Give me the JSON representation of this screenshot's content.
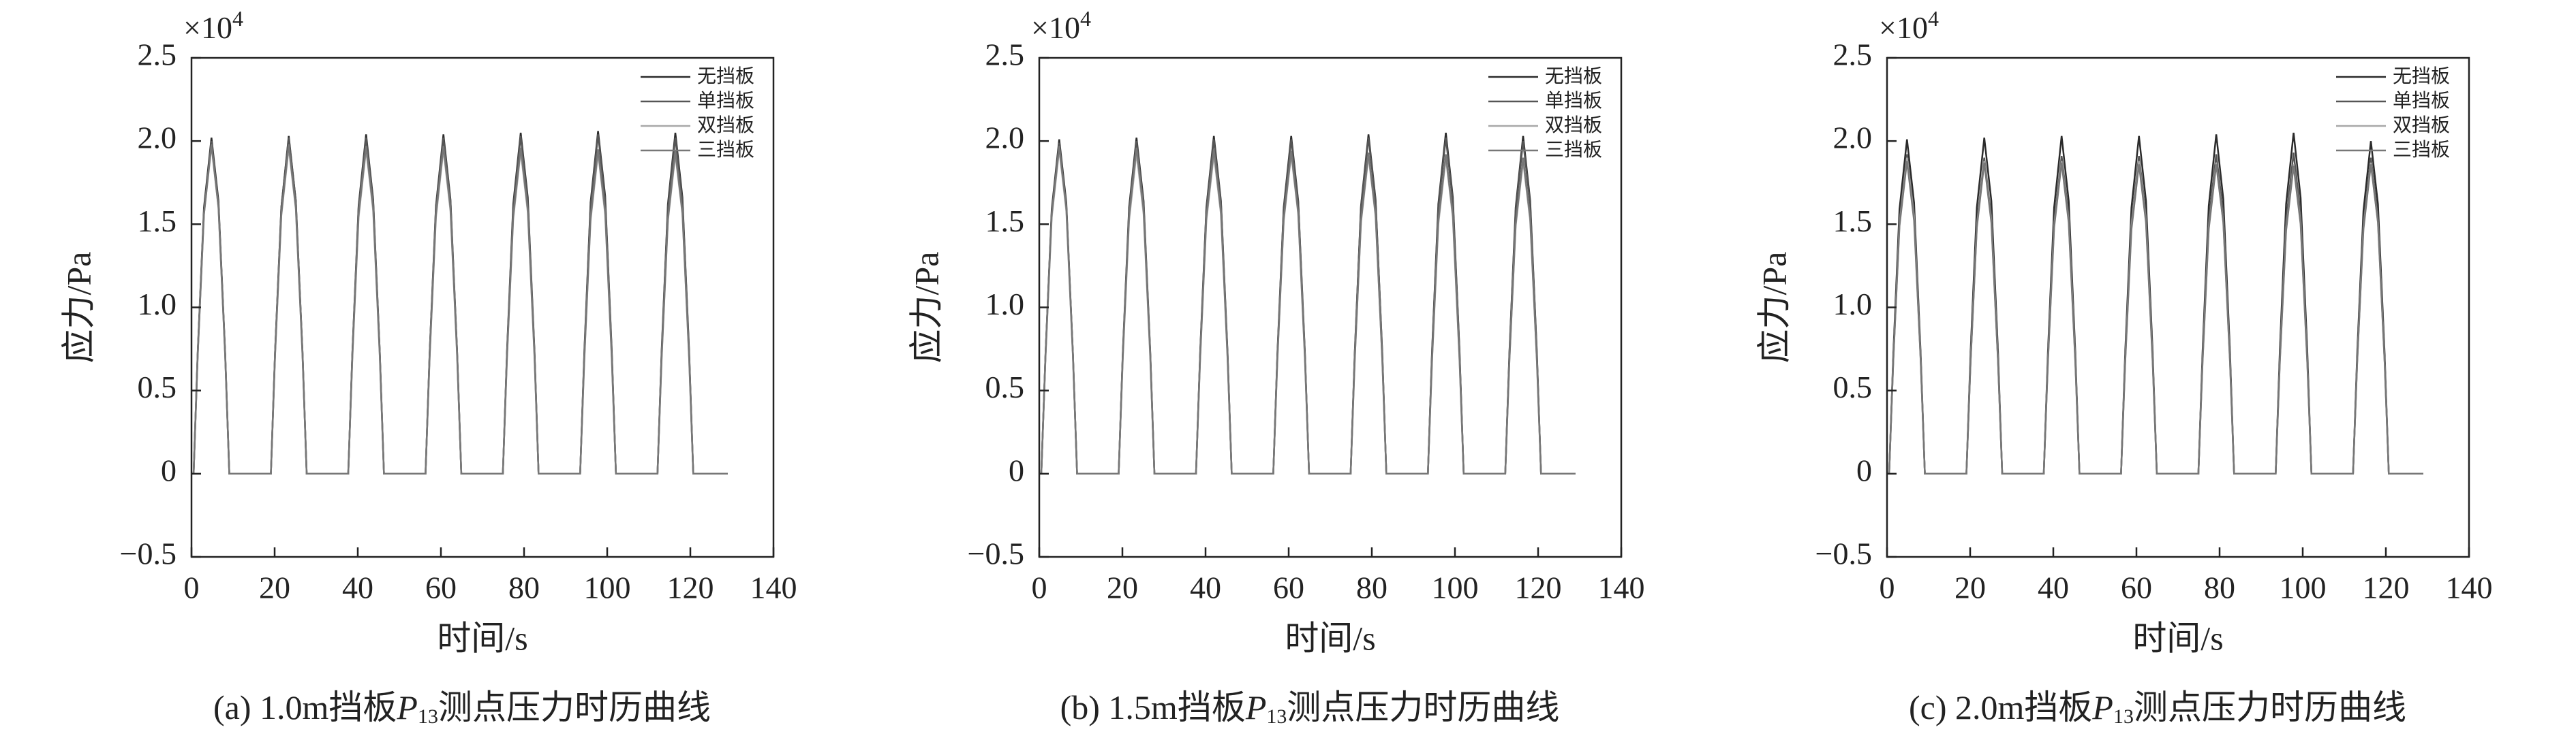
{
  "chart_data": [
    {
      "type": "line",
      "caption": [
        "(a) 1.0m挡板",
        "P",
        "13",
        "测点压力时历曲线"
      ],
      "x_label": "时间/s",
      "y_label": "应力/Pa",
      "y_multiplier": [
        "×10",
        "4"
      ],
      "xlim": [
        0,
        140
      ],
      "xticks": [
        0,
        20,
        40,
        60,
        80,
        100,
        120,
        140
      ],
      "ylim": [
        -0.5,
        2.5
      ],
      "yticks": [
        {
          "value": -0.5,
          "label": "−0.5"
        },
        0,
        0.5,
        {
          "value": 1,
          "label": "1.0"
        },
        1.5,
        {
          "value": 2,
          "label": "2.0"
        },
        2.5
      ],
      "x": [
        0.5,
        1.5,
        3,
        4.8,
        6.5,
        8.1,
        9.1,
        19.1,
        20.1,
        21.6,
        23.4,
        25.1,
        26.7,
        27.7,
        37.7,
        38.7,
        40.2,
        42,
        43.7,
        45.3,
        46.3,
        56.3,
        57.3,
        58.8,
        60.6,
        62.3,
        63.9,
        64.9,
        74.9,
        75.9,
        77.4,
        79.2,
        80.9,
        82.5,
        83.5,
        93.5,
        94.5,
        96,
        97.8,
        99.5,
        101.1,
        102.1,
        112.1,
        113.1,
        114.6,
        116.4,
        118.1,
        119.7,
        120.7,
        129
      ],
      "series": [
        {
          "name": "无挡板",
          "color": "#2b2b2b",
          "values": [
            0,
            0.73,
            1.6,
            2.02,
            1.64,
            0.73,
            0,
            0,
            0.73,
            1.6,
            2.03,
            1.64,
            0.73,
            0,
            0,
            0.73,
            1.61,
            2.04,
            1.65,
            0.73,
            0,
            0,
            0.73,
            1.61,
            2.04,
            1.65,
            0.73,
            0,
            0,
            0.74,
            1.62,
            2.05,
            1.66,
            0.74,
            0,
            0,
            0.74,
            1.63,
            2.06,
            1.67,
            0.74,
            0,
            0,
            0.74,
            1.62,
            2.05,
            1.66,
            0.74,
            0,
            0
          ]
        },
        {
          "name": "单挡板",
          "color": "#555555",
          "values": [
            0,
            0.72,
            1.58,
            2,
            1.62,
            0.72,
            0,
            0,
            0.73,
            1.6,
            2.02,
            1.64,
            0.73,
            0,
            0,
            0.73,
            1.6,
            2.02,
            1.64,
            0.73,
            0,
            0,
            0.73,
            1.6,
            2.02,
            1.64,
            0.73,
            0,
            0,
            0.73,
            1.6,
            2.03,
            1.64,
            0.73,
            0,
            0,
            0.73,
            1.61,
            2.04,
            1.65,
            0.73,
            0,
            0,
            0.73,
            1.6,
            2.02,
            1.64,
            0.73,
            0,
            0
          ]
        },
        {
          "name": "双挡板",
          "color": "#a8a8a8",
          "values": [
            0,
            0.71,
            1.56,
            1.97,
            1.6,
            0.71,
            0,
            0,
            0.71,
            1.55,
            1.96,
            1.59,
            0.71,
            0,
            0,
            0.7,
            1.54,
            1.95,
            1.58,
            0.7,
            0,
            0,
            0.7,
            1.54,
            1.95,
            1.58,
            0.7,
            0,
            0,
            0.7,
            1.53,
            1.94,
            1.57,
            0.7,
            0,
            0,
            0.69,
            1.52,
            1.93,
            1.56,
            0.69,
            0,
            0,
            0.69,
            1.52,
            1.92,
            1.56,
            0.69,
            0,
            0
          ]
        },
        {
          "name": "三挡板",
          "color": "#777777",
          "values": [
            0,
            0.71,
            1.56,
            1.98,
            1.6,
            0.71,
            0,
            0,
            0.71,
            1.56,
            1.98,
            1.6,
            0.71,
            0,
            0,
            0.71,
            1.56,
            1.97,
            1.6,
            0.71,
            0,
            0,
            0.71,
            1.56,
            1.97,
            1.6,
            0.71,
            0,
            0,
            0.71,
            1.55,
            1.96,
            1.59,
            0.71,
            0,
            0,
            0.7,
            1.54,
            1.95,
            1.58,
            0.7,
            0,
            0,
            0.7,
            1.53,
            1.94,
            1.57,
            0.7,
            0,
            0
          ]
        }
      ]
    },
    {
      "type": "line",
      "caption": [
        "(b) 1.5m挡板",
        "P",
        "13",
        "测点压力时历曲线"
      ],
      "x_label": "时间/s",
      "y_label": "应力/Pa",
      "y_multiplier": [
        "×10",
        "4"
      ],
      "xlim": [
        0,
        140
      ],
      "xticks": [
        0,
        20,
        40,
        60,
        80,
        100,
        120,
        140
      ],
      "ylim": [
        -0.5,
        2.5
      ],
      "yticks": [
        {
          "value": -0.5,
          "label": "−0.5"
        },
        0,
        0.5,
        {
          "value": 1,
          "label": "1.0"
        },
        1.5,
        {
          "value": 2,
          "label": "2.0"
        },
        2.5
      ],
      "x": [
        0.5,
        1.5,
        3,
        4.8,
        6.5,
        8.1,
        9.1,
        19.1,
        20.1,
        21.6,
        23.4,
        25.1,
        26.7,
        27.7,
        37.7,
        38.7,
        40.2,
        42,
        43.7,
        45.3,
        46.3,
        56.3,
        57.3,
        58.8,
        60.6,
        62.3,
        63.9,
        64.9,
        74.9,
        75.9,
        77.4,
        79.2,
        80.9,
        82.5,
        83.5,
        93.5,
        94.5,
        96,
        97.8,
        99.5,
        101.1,
        102.1,
        112.1,
        113.1,
        114.6,
        116.4,
        118.1,
        119.7,
        120.7,
        129
      ],
      "series": [
        {
          "name": "无挡板",
          "color": "#2b2b2b",
          "values": [
            0,
            0.72,
            1.59,
            2.01,
            1.63,
            0.72,
            0,
            0,
            0.73,
            1.6,
            2.02,
            1.64,
            0.73,
            0,
            0,
            0.73,
            1.6,
            2.03,
            1.64,
            0.73,
            0,
            0,
            0.73,
            1.6,
            2.03,
            1.64,
            0.73,
            0,
            0,
            0.73,
            1.61,
            2.04,
            1.65,
            0.73,
            0,
            0,
            0.74,
            1.62,
            2.05,
            1.66,
            0.74,
            0,
            0,
            0.73,
            1.6,
            2.03,
            1.64,
            0.73,
            0,
            0
          ]
        },
        {
          "name": "单挡板",
          "color": "#555555",
          "values": [
            0,
            0.72,
            1.57,
            1.99,
            1.61,
            0.72,
            0,
            0,
            0.72,
            1.58,
            2,
            1.62,
            0.72,
            0,
            0,
            0.72,
            1.59,
            2.01,
            1.63,
            0.72,
            0,
            0,
            0.72,
            1.59,
            2.01,
            1.63,
            0.72,
            0,
            0,
            0.73,
            1.6,
            2.02,
            1.64,
            0.73,
            0,
            0,
            0.73,
            1.6,
            2.02,
            1.64,
            0.73,
            0,
            0,
            0.72,
            1.58,
            2,
            1.62,
            0.72,
            0,
            0
          ]
        },
        {
          "name": "双挡板",
          "color": "#a8a8a8",
          "values": [
            0,
            0.7,
            1.54,
            1.95,
            1.58,
            0.7,
            0,
            0,
            0.69,
            1.52,
            1.93,
            1.56,
            0.69,
            0,
            0,
            0.69,
            1.52,
            1.92,
            1.56,
            0.69,
            0,
            0,
            0.69,
            1.52,
            1.92,
            1.56,
            0.69,
            0,
            0,
            0.69,
            1.51,
            1.91,
            1.55,
            0.69,
            0,
            0,
            0.68,
            1.5,
            1.9,
            1.54,
            0.68,
            0,
            0,
            0.68,
            1.49,
            1.88,
            1.52,
            0.68,
            0,
            0
          ]
        },
        {
          "name": "三挡板",
          "color": "#777777",
          "values": [
            0,
            0.71,
            1.56,
            1.97,
            1.6,
            0.71,
            0,
            0,
            0.71,
            1.55,
            1.96,
            1.59,
            0.71,
            0,
            0,
            0.7,
            1.54,
            1.95,
            1.58,
            0.7,
            0,
            0,
            0.7,
            1.53,
            1.94,
            1.57,
            0.7,
            0,
            0,
            0.69,
            1.52,
            1.93,
            1.56,
            0.69,
            0,
            0,
            0.69,
            1.52,
            1.92,
            1.56,
            0.69,
            0,
            0,
            0.68,
            1.5,
            1.9,
            1.54,
            0.68,
            0,
            0
          ]
        }
      ]
    },
    {
      "type": "line",
      "caption": [
        "(c) 2.0m挡板",
        "P",
        "13",
        "测点压力时历曲线"
      ],
      "x_label": "时间/s",
      "y_label": "应力/Pa",
      "y_multiplier": [
        "×10",
        "4"
      ],
      "xlim": [
        0,
        140
      ],
      "xticks": [
        0,
        20,
        40,
        60,
        80,
        100,
        120,
        140
      ],
      "ylim": [
        -0.5,
        2.5
      ],
      "yticks": [
        {
          "value": -0.5,
          "label": "−0.5"
        },
        0,
        0.5,
        {
          "value": 1,
          "label": "1.0"
        },
        1.5,
        {
          "value": 2,
          "label": "2.0"
        },
        2.5
      ],
      "x": [
        0.5,
        1.5,
        3,
        4.8,
        6.5,
        8.1,
        9.1,
        19.1,
        20.1,
        21.6,
        23.4,
        25.1,
        26.7,
        27.7,
        37.7,
        38.7,
        40.2,
        42,
        43.7,
        45.3,
        46.3,
        56.3,
        57.3,
        58.8,
        60.6,
        62.3,
        63.9,
        64.9,
        74.9,
        75.9,
        77.4,
        79.2,
        80.9,
        82.5,
        83.5,
        93.5,
        94.5,
        96,
        97.8,
        99.5,
        101.1,
        102.1,
        112.1,
        113.1,
        114.6,
        116.4,
        118.1,
        119.7,
        120.7,
        129
      ],
      "series": [
        {
          "name": "无挡板",
          "color": "#2b2b2b",
          "values": [
            0,
            0.72,
            1.59,
            2.01,
            1.63,
            0.72,
            0,
            0,
            0.73,
            1.6,
            2.02,
            1.64,
            0.73,
            0,
            0,
            0.73,
            1.6,
            2.03,
            1.64,
            0.73,
            0,
            0,
            0.73,
            1.6,
            2.03,
            1.64,
            0.73,
            0,
            0,
            0.73,
            1.61,
            2.04,
            1.65,
            0.73,
            0,
            0,
            0.74,
            1.62,
            2.05,
            1.66,
            0.74,
            0,
            0,
            0.72,
            1.58,
            2,
            1.62,
            0.72,
            0,
            0
          ]
        },
        {
          "name": "单挡板",
          "color": "#555555",
          "values": [
            0,
            0.69,
            1.52,
            1.92,
            1.56,
            0.69,
            0,
            0,
            0.68,
            1.5,
            1.9,
            1.54,
            0.68,
            0,
            0,
            0.69,
            1.51,
            1.91,
            1.55,
            0.69,
            0,
            0,
            0.69,
            1.51,
            1.91,
            1.55,
            0.69,
            0,
            0,
            0.69,
            1.52,
            1.92,
            1.56,
            0.69,
            0,
            0,
            0.69,
            1.52,
            1.93,
            1.56,
            0.69,
            0,
            0,
            0.68,
            1.5,
            1.9,
            1.54,
            0.68,
            0,
            0
          ]
        },
        {
          "name": "双挡板",
          "color": "#a8a8a8",
          "values": [
            0,
            0.68,
            1.5,
            1.9,
            1.54,
            0.68,
            0,
            0,
            0.68,
            1.49,
            1.88,
            1.52,
            0.68,
            0,
            0,
            0.68,
            1.49,
            1.88,
            1.52,
            0.68,
            0,
            0,
            0.68,
            1.49,
            1.88,
            1.52,
            0.68,
            0,
            0,
            0.67,
            1.48,
            1.87,
            1.51,
            0.67,
            0,
            0,
            0.67,
            1.47,
            1.86,
            1.51,
            0.67,
            0,
            0,
            0.67,
            1.48,
            1.87,
            1.51,
            0.67,
            0,
            0
          ]
        },
        {
          "name": "三挡板",
          "color": "#777777",
          "values": [
            0,
            0.68,
            1.49,
            1.88,
            1.52,
            0.68,
            0,
            0,
            0.67,
            1.48,
            1.87,
            1.51,
            0.67,
            0,
            0,
            0.67,
            1.48,
            1.87,
            1.51,
            0.67,
            0,
            0,
            0.67,
            1.47,
            1.86,
            1.51,
            0.67,
            0,
            0,
            0.67,
            1.47,
            1.86,
            1.51,
            0.67,
            0,
            0,
            0.67,
            1.46,
            1.85,
            1.5,
            0.67,
            0,
            0,
            0.67,
            1.47,
            1.86,
            1.51,
            0.67,
            0,
            0
          ]
        }
      ]
    }
  ]
}
